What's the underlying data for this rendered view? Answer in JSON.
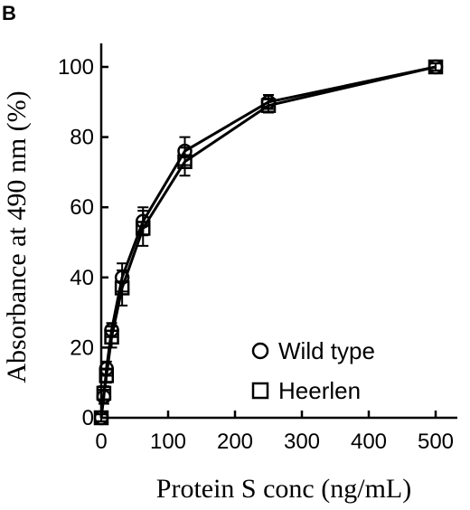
{
  "panel_label": "B",
  "chart_data": {
    "type": "line",
    "xlabel": "Protein S conc (ng/mL)",
    "ylabel": "Absorbance at 490 nm (%)",
    "xlim": [
      0,
      520
    ],
    "ylim": [
      0,
      105
    ],
    "x_ticks": [
      0,
      100,
      200,
      300,
      400,
      500
    ],
    "y_ticks": [
      0,
      20,
      40,
      60,
      80,
      100
    ],
    "grid": false,
    "legend_position": "bottom-right",
    "series": [
      {
        "name": "Wild type",
        "marker": "circle",
        "color": "#000000",
        "x": [
          0,
          3.9,
          7.8,
          15.6,
          31.25,
          62.5,
          125,
          250,
          500
        ],
        "y": [
          0,
          6,
          14,
          25,
          40,
          56,
          76,
          90,
          100
        ],
        "err": [
          1,
          2,
          2,
          2,
          4,
          4,
          4,
          2,
          1
        ]
      },
      {
        "name": "Heerlen",
        "marker": "square",
        "color": "#000000",
        "x": [
          0,
          3.9,
          7.8,
          15.6,
          31.25,
          62.5,
          125,
          250,
          500
        ],
        "y": [
          0,
          7,
          12,
          23,
          37,
          54,
          73,
          89,
          100
        ],
        "err": [
          1,
          2,
          2,
          3,
          5,
          5,
          4,
          2,
          1
        ]
      }
    ]
  }
}
